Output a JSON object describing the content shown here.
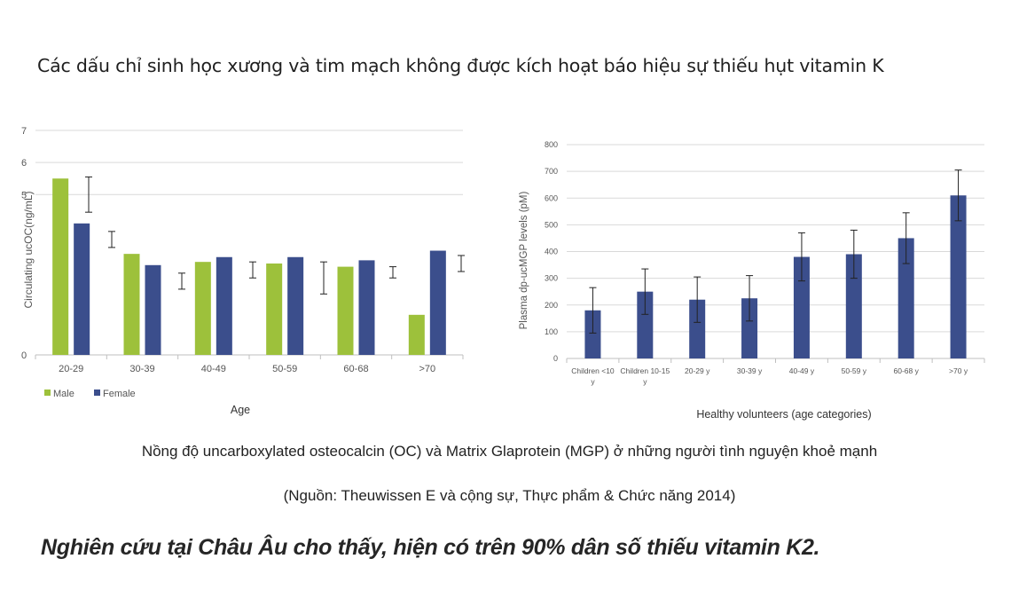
{
  "page": {
    "title": "Các dấu chỉ sinh học xương và tim mạch không được kích hoạt báo hiệu sự  thiếu hụt vitamin K",
    "caption": "Nồng độ uncarboxylated osteocalcin (OC) và Matrix Glaprotein (MGP) ở những người tình nguyện khoẻ mạnh",
    "source": "(Nguồn: Theuwissen E và cộng sự, Thực phẩm & Chức năng 2014)",
    "footer": "Nghiên cứu tại Châu Âu cho thấy, hiện có trên 90% dân số thiếu vitamin K2."
  },
  "colors": {
    "male": "#9dc13b",
    "female": "#3b4e8c",
    "grid": "#d9d9d9",
    "axis": "#bfbfbf",
    "error": "#222222"
  },
  "chart_data": [
    {
      "type": "bar",
      "categories": [
        "20-29",
        "30-39",
        "40-49",
        "50-59",
        "60-68",
        ">70"
      ],
      "series": [
        {
          "name": "Male",
          "values": [
            5.5,
            3.15,
            2.9,
            2.85,
            2.75,
            1.25
          ]
        },
        {
          "name": "Female",
          "values": [
            4.1,
            2.8,
            3.05,
            3.05,
            2.95,
            3.25
          ]
        }
      ],
      "error_bars": {
        "tops": [
          5.55,
          3.85,
          2.55,
          2.9,
          2.9,
          2.75,
          3.1
        ],
        "bottoms": [
          4.45,
          3.35,
          2.05,
          2.4,
          1.9,
          2.4,
          2.6
        ]
      },
      "title": "",
      "xlabel": "Age",
      "ylabel": "Circulating ucOC(ng/mL)",
      "ylim": [
        0,
        7
      ],
      "yticks": [
        0,
        5,
        6,
        7
      ],
      "legend": "bottom-left",
      "grid": true
    },
    {
      "type": "bar",
      "categories": [
        "Children <10 y",
        "Children 10-15 y",
        "20-29 y",
        "30-39 y",
        "40-49 y",
        "50-59 y",
        "60-68 y",
        ">70 y"
      ],
      "series": [
        {
          "name": "",
          "values": [
            180,
            250,
            220,
            225,
            380,
            390,
            450,
            610
          ],
          "err": [
            85,
            85,
            85,
            85,
            90,
            90,
            95,
            95
          ]
        }
      ],
      "title": "",
      "xlabel": "Healthy volunteers (age categories)",
      "ylabel": "Plasma dp-ucMGP levels (pM)",
      "ylim": [
        0,
        800
      ],
      "yticks": [
        0,
        100,
        200,
        300,
        400,
        500,
        600,
        700,
        800
      ],
      "grid": true
    }
  ]
}
